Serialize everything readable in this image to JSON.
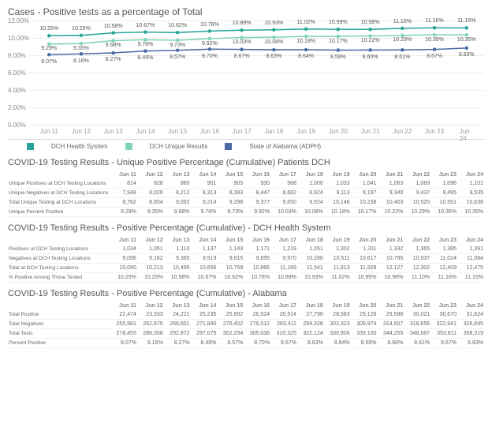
{
  "chart": {
    "title": "Cases - Positive tests as a percentage of Total",
    "ylim": [
      0,
      12
    ],
    "ytick_step": 2,
    "dates": [
      "Jun 11",
      "Jun 12",
      "Jun 13",
      "Jun 14",
      "Jun 15",
      "Jun 16",
      "Jun 17",
      "Jun 18",
      "Jun 19",
      "Jun 20",
      "Jun 21",
      "Jun 22",
      "Jun 23",
      "Jun 24"
    ],
    "series": [
      {
        "name": "DCH Health System",
        "color": "#27a59a",
        "marker": "#27a59a",
        "values": [
          10.25,
          10.29,
          10.58,
          10.67,
          10.62,
          10.78,
          10.89,
          10.93,
          11.02,
          10.99,
          10.98,
          11.1,
          11.16,
          11.15
        ],
        "labels": [
          "10.25%",
          "10.29%",
          "10.58%",
          "10.67%",
          "10.62%",
          "10.78%",
          "10.89%",
          "10.93%",
          "11.02%",
          "10.99%",
          "10.98%",
          "11.10%",
          "11.16%",
          "11.15%"
        ],
        "label_dy": -9
      },
      {
        "name": "DCH Unique Results",
        "color": "#7fd4b5",
        "marker": "#7fd4b5",
        "values": [
          9.29,
          9.35,
          9.68,
          9.78,
          9.73,
          9.92,
          10.03,
          10.08,
          10.18,
          10.17,
          10.22,
          10.29,
          10.35,
          10.35
        ],
        "labels": [
          "9.29%",
          "9.35%",
          "9.68%",
          "9.78%",
          "9.73%",
          "9.92%",
          "10.03%",
          "10.08%",
          "10.18%",
          "10.17%",
          "10.22%",
          "10.29%",
          "10.35%",
          "10.35%"
        ],
        "label_dy": 2
      },
      {
        "name": "State of Alabama (ADPH)",
        "color": "#4a6aa5",
        "marker": "#4a6aa5",
        "values": [
          8.07,
          8.16,
          8.27,
          8.49,
          8.57,
          8.7,
          8.67,
          8.63,
          8.64,
          8.59,
          8.6,
          8.61,
          8.67,
          8.83
        ],
        "labels": [
          "8.07%",
          "8.16%",
          "8.27%",
          "8.49%",
          "8.57%",
          "8.70%",
          "8.67%",
          "8.63%",
          "8.64%",
          "8.59%",
          "8.60%",
          "8.61%",
          "8.67%",
          "8.83%"
        ],
        "label_dy": 4
      }
    ]
  },
  "tables": [
    {
      "title": "COVID-19 Testing Results - Unique Positive Percentage (Cumulative) Patients DCH",
      "rows": [
        {
          "label": "Unique Positives at DCH Testing Locations",
          "v": [
            "814",
            "828",
            "880",
            "901",
            "905",
            "930",
            "968",
            "1,000",
            "1,033",
            "1,041",
            "1,063",
            "1,083",
            "1,096",
            "1,101"
          ]
        },
        {
          "label": "Unique Negatives at DCH Testing Locations",
          "v": [
            "7,948",
            "8,026",
            "8,212",
            "8,313",
            "8,393",
            "8,447",
            "8,682",
            "8,924",
            "9,113",
            "9,197",
            "9,340",
            "9,437",
            "9,495",
            "9,535"
          ]
        },
        {
          "label": "Total Unique Testing at DCH Locations",
          "v": [
            "8,762",
            "8,854",
            "9,092",
            "9,214",
            "9,298",
            "9,377",
            "9,650",
            "9,924",
            "10,146",
            "10,238",
            "10,403",
            "10,520",
            "10,591",
            "10,636"
          ]
        },
        {
          "label": "Unique Percent Positive",
          "v": [
            "9.29%",
            "9.35%",
            "9.68%",
            "9.78%",
            "9.73%",
            "9.92%",
            "10.03%",
            "10.08%",
            "10.18%",
            "10.17%",
            "10.22%",
            "10.29%",
            "10.35%",
            "10.35%"
          ]
        }
      ]
    },
    {
      "title": "COVID-19 Testing Results - Positive Percentage (Cumulative) - DCH Health System",
      "rows": [
        {
          "label": "Positives at DCH Testing Locations",
          "v": [
            "1,034",
            "1,051",
            "1,110",
            "1,137",
            "1,143",
            "1,171",
            "1,219",
            "1,261",
            "1,302",
            "1,311",
            "1,332",
            "1,365",
            "1,385",
            "1,391"
          ]
        },
        {
          "label": "Negatives at DCH Testing Locations",
          "v": [
            "9,056",
            "9,162",
            "9,385",
            "9,519",
            "9,615",
            "9,695",
            "9,970",
            "10,280",
            "10,511",
            "10,617",
            "10,795",
            "10,937",
            "11,024",
            "11,084"
          ]
        },
        {
          "label": "Total at DCH Testing Locations",
          "v": [
            "10,090",
            "10,213",
            "10,495",
            "10,656",
            "10,758",
            "10,866",
            "11,189",
            "11,541",
            "11,813",
            "11,928",
            "12,127",
            "12,302",
            "12,409",
            "12,475"
          ]
        },
        {
          "label": "% Positive Among Those Tested",
          "v": [
            "10.25%",
            "10.29%",
            "10.58%",
            "10.67%",
            "10.62%",
            "10.78%",
            "10.89%",
            "10.93%",
            "11.02%",
            "10.99%",
            "10.98%",
            "11.10%",
            "11.16%",
            "11.15%"
          ]
        }
      ]
    },
    {
      "title": "COVID-19 Testing Results - Positive Percentage (Cumulative) - Alabama",
      "rows": [
        {
          "label": "Total Positive",
          "v": [
            "22,474",
            "23,333",
            "24,221",
            "25,235",
            "25,892",
            "26,524",
            "26,914",
            "27,796",
            "28,583",
            "29,126",
            "29,598",
            "30,021",
            "30,670",
            "31,624"
          ]
        },
        {
          "label": "Total Negatives",
          "v": [
            "255,981",
            "262,675",
            "268,651",
            "271,840",
            "276,402",
            "278,512",
            "283,411",
            "294,328",
            "302,323",
            "309,974",
            "314,657",
            "318,656",
            "322,941",
            "326,695"
          ]
        },
        {
          "label": "Total Tests",
          "v": [
            "278,455",
            "286,008",
            "292,872",
            "297,075",
            "302,294",
            "305,036",
            "310,325",
            "322,124",
            "330,906",
            "339,100",
            "344,255",
            "348,687",
            "353,611",
            "358,319"
          ]
        },
        {
          "label": "Percent Positive",
          "v": [
            "8.07%",
            "8.16%",
            "8.27%",
            "8.49%",
            "8.57%",
            "8.70%",
            "8.67%",
            "8.63%",
            "8.64%",
            "8.59%",
            "8.60%",
            "8.61%",
            "8.67%",
            "8.83%"
          ]
        }
      ]
    }
  ]
}
